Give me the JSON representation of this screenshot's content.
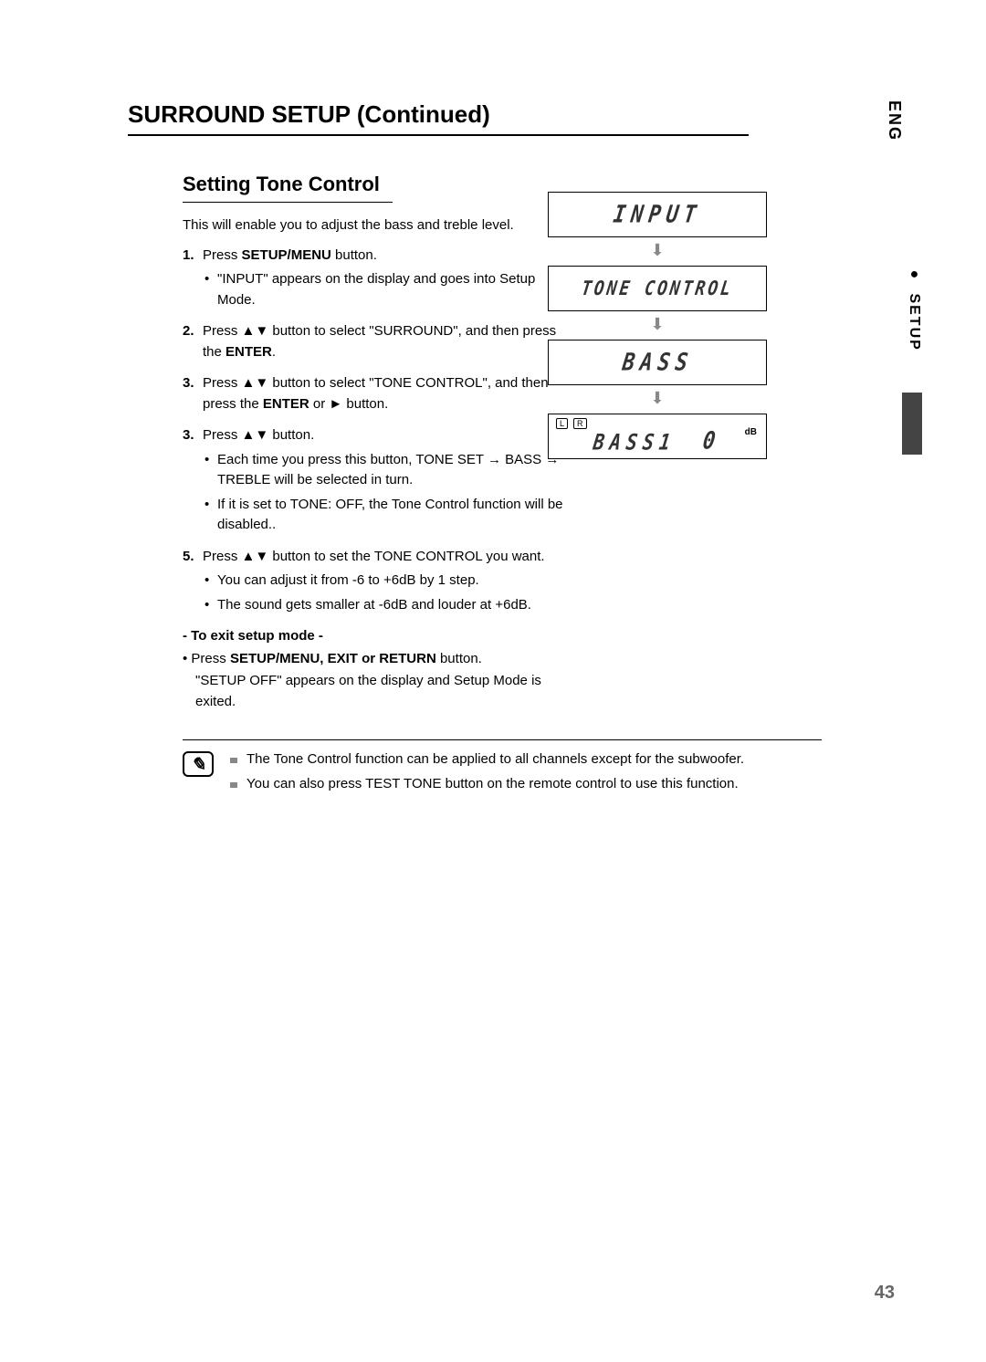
{
  "lang_tab": "ENG",
  "side_tab": " SETUP",
  "header": "SURROUND SETUP (Continued)",
  "section_title": "Setting Tone Control",
  "intro": "This will enable you to adjust the bass and treble level.",
  "steps": [
    {
      "num": "1.",
      "text_pre": "Press ",
      "bold": "SETUP/MENU",
      "text_post": " button.",
      "sub": [
        "\"INPUT\" appears on the display and goes into Setup Mode."
      ]
    },
    {
      "num": "2.",
      "text_pre": "Press ▲▼ button to select \"SURROUND\", and then press the ",
      "bold": "ENTER",
      "text_post": ".",
      "sub": []
    },
    {
      "num": "3.",
      "text_pre": "Press ▲▼ button to select \"TONE CONTROL\", and then press the ",
      "bold": "ENTER",
      "text_post": " or ► button.",
      "sub": []
    },
    {
      "num": "3.",
      "text_pre": "Press ▲▼ button.",
      "bold": "",
      "text_post": "",
      "sub": [
        "Each time you press this button, TONE SET → BASS → TREBLE will be selected in turn.",
        "If it is set to TONE: OFF, the Tone Control function will be disabled.."
      ]
    },
    {
      "num": "5.",
      "text_pre": "Press ▲▼ button to set the TONE CONTROL  you want.",
      "bold": "",
      "text_post": "",
      "sub": [
        "You can adjust it from -6 to +6dB by 1 step.",
        "The sound gets smaller at -6dB and louder at +6dB."
      ]
    }
  ],
  "exit_title": "- To exit setup mode -",
  "exit_pre": "• Press ",
  "exit_bold": "SETUP/MENU, EXIT or RETURN",
  "exit_post": " button.",
  "exit_line2": "\"SETUP OFF\" appears on the display and Setup Mode is exited.",
  "notes": [
    "The Tone Control function can be applied to all channels except for the subwoofer.",
    "You can also press TEST TONE button on the remote control to use this function."
  ],
  "lcd": {
    "p1": "INPUT",
    "p2": "TONE CONTROL",
    "p3": "BASS",
    "p4_label": "BASS1",
    "p4_value": "0",
    "p4_unit": "dB",
    "ind_l": "L",
    "ind_r": "R"
  },
  "page_num": "43"
}
